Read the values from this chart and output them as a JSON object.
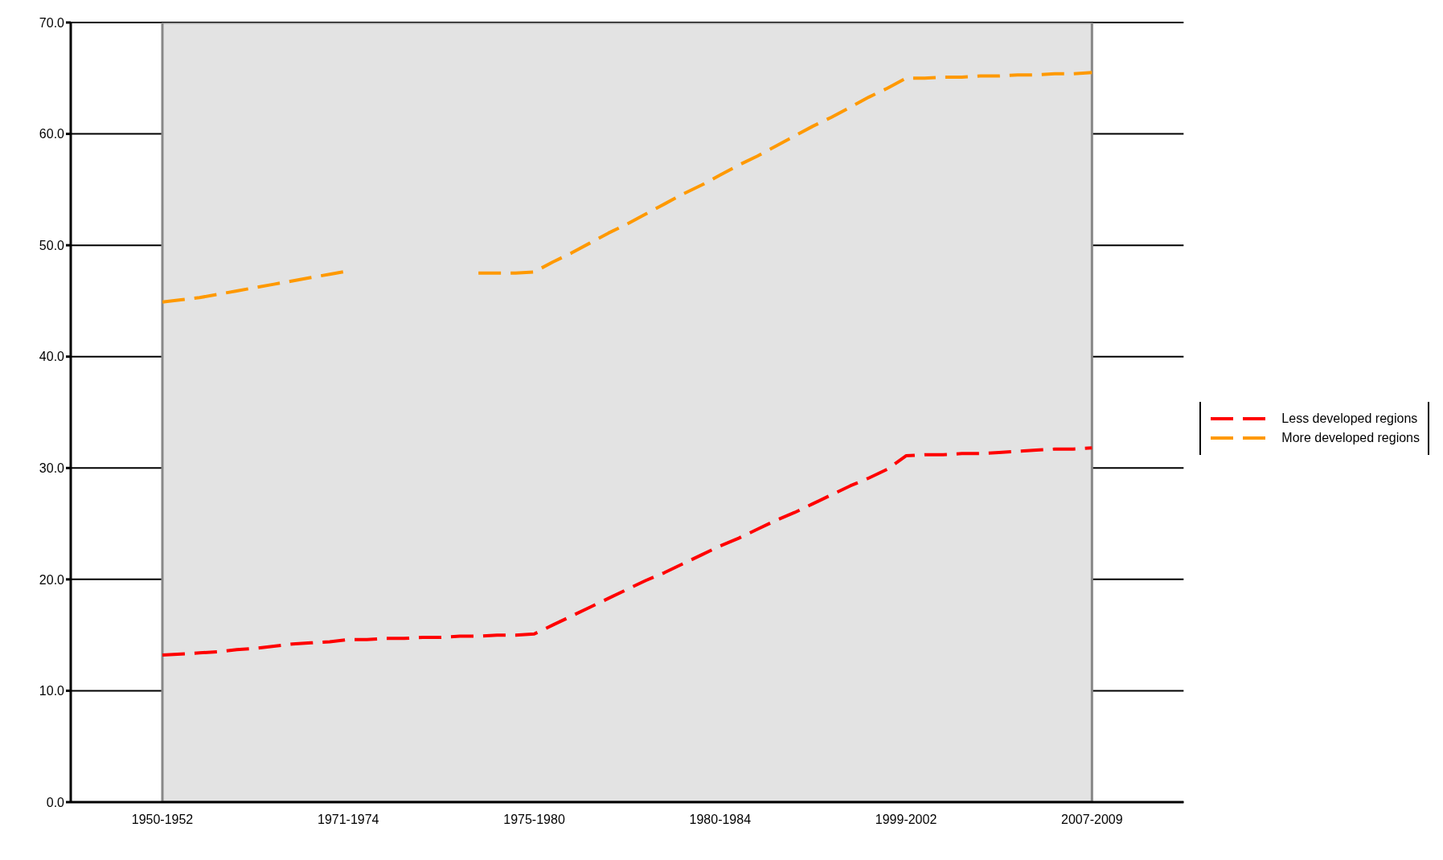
{
  "chart_data": {
    "type": "line",
    "line_style": "dashed",
    "marker": "none",
    "grid": "y",
    "legend": "right",
    "categories": [
      "1950-1952",
      null,
      null,
      null,
      null,
      null,
      null,
      null,
      null,
      null,
      "1971-1974",
      null,
      null,
      null,
      null,
      null,
      null,
      null,
      null,
      null,
      "1975-1980",
      null,
      null,
      null,
      null,
      null,
      null,
      null,
      null,
      null,
      "1980-1984",
      null,
      null,
      null,
      null,
      null,
      null,
      null,
      null,
      null,
      "1999-2002",
      null,
      null,
      null,
      null,
      null,
      null,
      null,
      null,
      null,
      "2007-2009"
    ],
    "ylim": [
      0,
      70
    ],
    "yticks": [
      {
        "value": 0,
        "label": "0.0"
      },
      {
        "value": 10,
        "label": "10.0"
      },
      {
        "value": 20,
        "label": "20.0"
      },
      {
        "value": 30,
        "label": "30.0"
      },
      {
        "value": 40,
        "label": "40.0"
      },
      {
        "value": 50,
        "label": "50.0"
      },
      {
        "value": 60,
        "label": "60.0"
      },
      {
        "value": 70,
        "label": "70.0"
      }
    ],
    "series": [
      {
        "name": "More developed regions",
        "color": "#ff9900",
        "values": [
          44.9,
          45.1,
          45.3,
          45.6,
          45.9,
          46.2,
          46.5,
          46.8,
          47.1,
          47.4,
          47.7,
          null,
          null,
          null,
          null,
          null,
          null,
          47.5,
          47.5,
          47.5,
          47.6,
          48.5,
          49.3,
          50.2,
          51.1,
          51.9,
          52.8,
          53.7,
          54.6,
          55.4,
          56.3,
          57.2,
          58.0,
          58.9,
          59.8,
          60.7,
          61.5,
          62.4,
          63.3,
          64.1,
          65.0,
          65.0,
          65.1,
          65.1,
          65.2,
          65.2,
          65.3,
          65.3,
          65.4,
          65.4,
          65.5
        ]
      },
      {
        "name": "Less developed regions",
        "color": "#ff0000",
        "values": [
          13.2,
          13.3,
          13.4,
          13.5,
          13.7,
          13.8,
          14.0,
          14.2,
          14.3,
          14.4,
          14.6,
          14.6,
          14.7,
          14.7,
          14.8,
          14.8,
          14.9,
          14.9,
          15.0,
          15.0,
          15.1,
          15.9,
          16.7,
          17.5,
          18.3,
          19.1,
          19.9,
          20.6,
          21.4,
          22.2,
          23.0,
          23.7,
          24.5,
          25.3,
          26.0,
          26.8,
          27.6,
          28.4,
          29.1,
          29.9,
          31.1,
          31.2,
          31.2,
          31.3,
          31.3,
          31.4,
          31.5,
          31.6,
          31.7,
          31.7,
          31.8
        ]
      }
    ]
  }
}
